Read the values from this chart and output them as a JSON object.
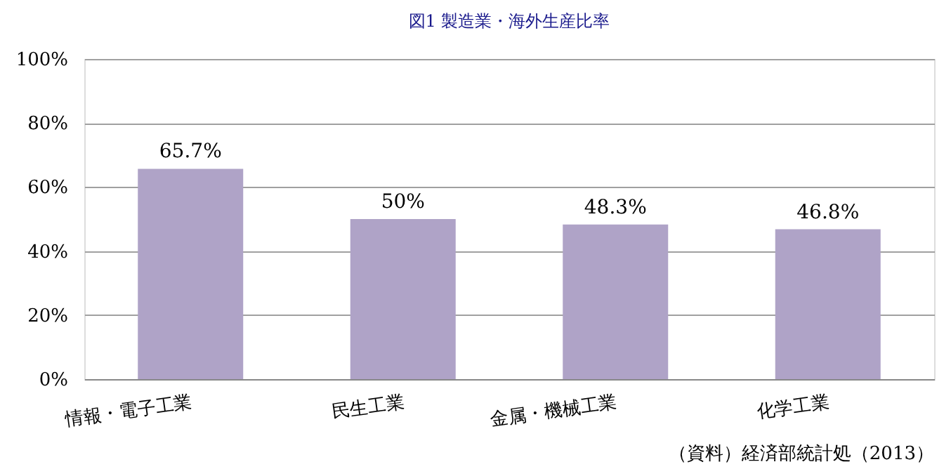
{
  "chart_data": {
    "type": "bar",
    "title": "図1  製造業・海外生産比率",
    "categories": [
      "情報・電子工業",
      "民生工業",
      "金属・機械工業",
      "化学工業"
    ],
    "values": [
      65.7,
      50,
      48.3,
      46.8
    ],
    "value_labels": [
      "65.7%",
      "50%",
      "48.3%",
      "46.8%"
    ],
    "color": "#afa3c7",
    "ylim": [
      0,
      100
    ],
    "yticks": [
      {
        "value": 0,
        "label": "0%"
      },
      {
        "value": 20,
        "label": "20%"
      },
      {
        "value": 40,
        "label": "40%"
      },
      {
        "value": 60,
        "label": "60%"
      },
      {
        "value": 80,
        "label": "80%"
      },
      {
        "value": 100,
        "label": "100%"
      }
    ],
    "grid": "y",
    "annotations": [
      "（資料）経済部統計処（2013）"
    ]
  }
}
